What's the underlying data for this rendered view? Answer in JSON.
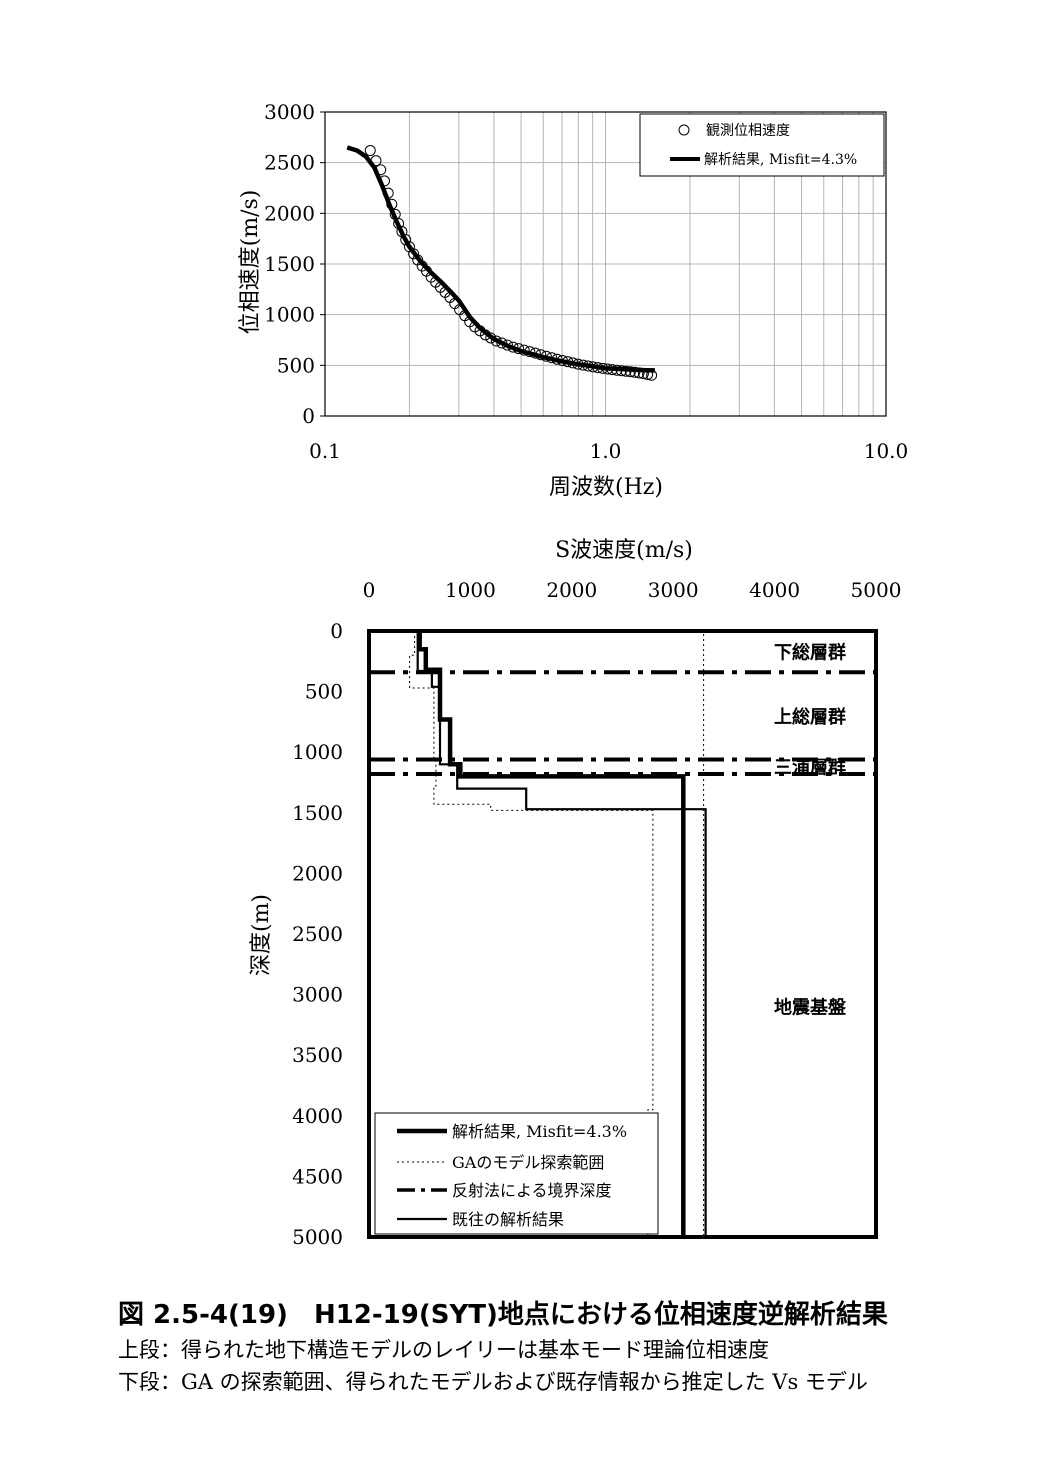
{
  "chart_data": [
    {
      "type": "scatter",
      "xscale": "log",
      "xlabel": "周波数(Hz)",
      "ylabel": "位相速度(m/s)",
      "xlim": [
        0.1,
        10.0
      ],
      "ylim": [
        0,
        3000
      ],
      "xticks": [
        "0.1",
        "1.0",
        "10.0"
      ],
      "yticks": [
        "0",
        "500",
        "1000",
        "1500",
        "2000",
        "2500",
        "3000"
      ],
      "grid": true,
      "legend_position": "top-right",
      "series": [
        {
          "name": "観測位相速度",
          "marker": "open-circle",
          "x": [
            0.145,
            0.152,
            0.158,
            0.163,
            0.168,
            0.173,
            0.178,
            0.183,
            0.188,
            0.194,
            0.2,
            0.207,
            0.214,
            0.222,
            0.23,
            0.239,
            0.248,
            0.258,
            0.268,
            0.279,
            0.29,
            0.302,
            0.315,
            0.328,
            0.342,
            0.357,
            0.373,
            0.39,
            0.408,
            0.427,
            0.447,
            0.468,
            0.49,
            0.513,
            0.537,
            0.562,
            0.588,
            0.615,
            0.643,
            0.672,
            0.702,
            0.733,
            0.765,
            0.798,
            0.832,
            0.867,
            0.903,
            0.94,
            0.978,
            1.017,
            1.057,
            1.098,
            1.14,
            1.183,
            1.227,
            1.272,
            1.318,
            1.365,
            1.413,
            1.46
          ],
          "y": [
            2620,
            2520,
            2430,
            2320,
            2200,
            2090,
            1990,
            1900,
            1820,
            1740,
            1670,
            1600,
            1540,
            1480,
            1430,
            1370,
            1320,
            1270,
            1220,
            1170,
            1110,
            1050,
            990,
            930,
            880,
            840,
            800,
            770,
            740,
            720,
            700,
            680,
            665,
            650,
            635,
            620,
            605,
            590,
            575,
            560,
            548,
            536,
            524,
            512,
            502,
            493,
            485,
            477,
            470,
            464,
            458,
            452,
            447,
            442,
            437,
            432,
            425,
            418,
            410,
            402
          ]
        },
        {
          "name": "解析結果, Misfit=4.3%",
          "line": "thick",
          "x": [
            0.12,
            0.13,
            0.14,
            0.15,
            0.16,
            0.17,
            0.18,
            0.19,
            0.2,
            0.22,
            0.24,
            0.26,
            0.28,
            0.3,
            0.33,
            0.36,
            0.4,
            0.45,
            0.5,
            0.6,
            0.7,
            0.8,
            0.9,
            1.0,
            1.1,
            1.2,
            1.3,
            1.4,
            1.5
          ],
          "y": [
            2650,
            2620,
            2560,
            2450,
            2270,
            2080,
            1920,
            1780,
            1670,
            1520,
            1410,
            1320,
            1230,
            1140,
            970,
            860,
            760,
            690,
            640,
            580,
            540,
            510,
            490,
            470,
            465,
            460,
            455,
            452,
            450
          ]
        }
      ]
    },
    {
      "type": "line",
      "title": "S波速度(m/s)",
      "xlabel": "",
      "ylabel": "深度(m)",
      "x_axis_position": "top",
      "y_inverted": true,
      "xlim": [
        0,
        5000
      ],
      "ylim": [
        0,
        5000
      ],
      "xticks": [
        "0",
        "1000",
        "2000",
        "3000",
        "4000",
        "5000"
      ],
      "yticks": [
        "0",
        "500",
        "1000",
        "1500",
        "2000",
        "2500",
        "3000",
        "3500",
        "4000",
        "4500",
        "5000"
      ],
      "grid": false,
      "legend_position": "bottom-left",
      "series": [
        {
          "name": "解析結果, Misfit=4.3%",
          "style": "thick-solid",
          "x": [
            500,
            500,
            560,
            560,
            700,
            700,
            800,
            800,
            900,
            900,
            1550,
            1550,
            3100,
            3100
          ],
          "y": [
            0,
            150,
            150,
            320,
            320,
            730,
            730,
            1100,
            1100,
            1200,
            1200,
            1200,
            1200,
            5000
          ]
        },
        {
          "name": "GAのモデル探索範囲",
          "style": "dotted",
          "x": [
            450,
            450,
            400,
            400,
            640,
            640,
            660,
            660,
            640,
            640,
            1200,
            1200,
            2800,
            2800,
            2750,
            2750,
            3300,
            3300,
            3300,
            3300
          ],
          "y": [
            0,
            200,
            200,
            470,
            470,
            1050,
            1050,
            1280,
            1280,
            1430,
            1430,
            1480,
            1480,
            3950,
            3950,
            5000,
            5000,
            950,
            950,
            0
          ]
        },
        {
          "name": "反射法による境界深度",
          "style": "dash-dot",
          "depths": [
            340,
            1060,
            1180
          ]
        },
        {
          "name": "既往の解析結果",
          "style": "solid",
          "x": [
            480,
            480,
            620,
            620,
            700,
            700,
            870,
            870,
            1550,
            1550,
            3320,
            3320
          ],
          "y": [
            0,
            330,
            330,
            460,
            460,
            1100,
            1100,
            1300,
            1300,
            1470,
            1470,
            5000
          ]
        }
      ],
      "annotations": [
        {
          "text": "下総層群",
          "depth": 170
        },
        {
          "text": "上総層群",
          "depth": 700
        },
        {
          "text": "三浦層群",
          "depth": 1120
        },
        {
          "text": "地震基盤",
          "depth": 3100
        }
      ]
    }
  ],
  "caption": {
    "title": "図 2.5-4(19)　H12-19(SYT)地点における位相速度逆解析結果",
    "line1": "上段：得られた地下構造モデルのレイリーは基本モード理論位相速度",
    "line2": "下段：GA の探索範囲、得られたモデルおよび既存情報から推定した Vs モデル"
  }
}
